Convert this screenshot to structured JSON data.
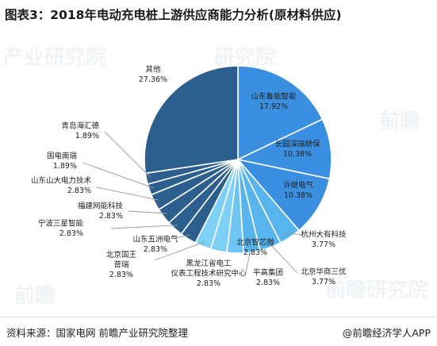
{
  "title": "图表3：2018年电动充电桩上游供应商能力分析(原材料供应)",
  "footer": {
    "source": "资料来源：国家电网 前瞻产业研究院整理",
    "brand": "@前瞻经济学人APP"
  },
  "watermarks": [
    "产业研究院",
    "前瞻",
    "研究院",
    "前瞻",
    "前瞻研究院"
  ],
  "colors": {
    "dark_blue": "#2c5f8d",
    "bright_blue": "#3b8fe0",
    "sky_blue": "#58b4ec",
    "light_blue": "#7fd0f6",
    "leader_line": "#999999"
  },
  "chart_data": {
    "type": "pie",
    "title": "2018年电动充电桩上游供应商能力分析(原材料供应)",
    "slices": [
      {
        "label": "山东鲁能智能",
        "value": 17.92,
        "display": "17.92%",
        "color": "#3b8fe0"
      },
      {
        "label": "长园深瑞继保",
        "value": 10.38,
        "display": "10.38%",
        "color": "#3b8fe0"
      },
      {
        "label": "许继电气",
        "value": 10.38,
        "display": "10.38%",
        "color": "#3b8fe0"
      },
      {
        "label": "杭州大有科技",
        "value": 3.77,
        "display": "3.77%",
        "color": "#58b4ec"
      },
      {
        "label": "北京华商三优",
        "value": 3.77,
        "display": "3.77%",
        "color": "#58b4ec"
      },
      {
        "label": "平高集团",
        "value": 2.83,
        "display": "2.83%",
        "color": "#58b4ec"
      },
      {
        "label": "北京智芯微",
        "value": 2.83,
        "display": "2.83%",
        "color": "#6fc4f2"
      },
      {
        "label": "黑龙江省电工仪表工程技术研究中心",
        "value": 2.83,
        "display": "2.83%",
        "color": "#7fd0f6"
      },
      {
        "label": "北京国王普瑞",
        "value": 2.83,
        "display": "2.83%",
        "color": "#7fd0f6"
      },
      {
        "label": "山东五洲电气",
        "value": 2.83,
        "display": "2.83%",
        "color": "#2c5f8d"
      },
      {
        "label": "宁波三星智能",
        "value": 2.83,
        "display": "2.83%",
        "color": "#2c5f8d"
      },
      {
        "label": "福建网能科技",
        "value": 2.83,
        "display": "2.83%",
        "color": "#2c5f8d"
      },
      {
        "label": "山东山大电力技术",
        "value": 2.83,
        "display": "2.83%",
        "color": "#2c5f8d"
      },
      {
        "label": "国电南瑞",
        "value": 1.89,
        "display": "1.89%",
        "color": "#2c5f8d"
      },
      {
        "label": "青岛海汇德",
        "value": 1.89,
        "display": "1.89%",
        "color": "#2c5f8d"
      },
      {
        "label": "其他",
        "value": 27.36,
        "display": "27.36%",
        "color": "#2c5f8d"
      }
    ],
    "start_angle_deg": 0,
    "direction": "clockwise"
  }
}
